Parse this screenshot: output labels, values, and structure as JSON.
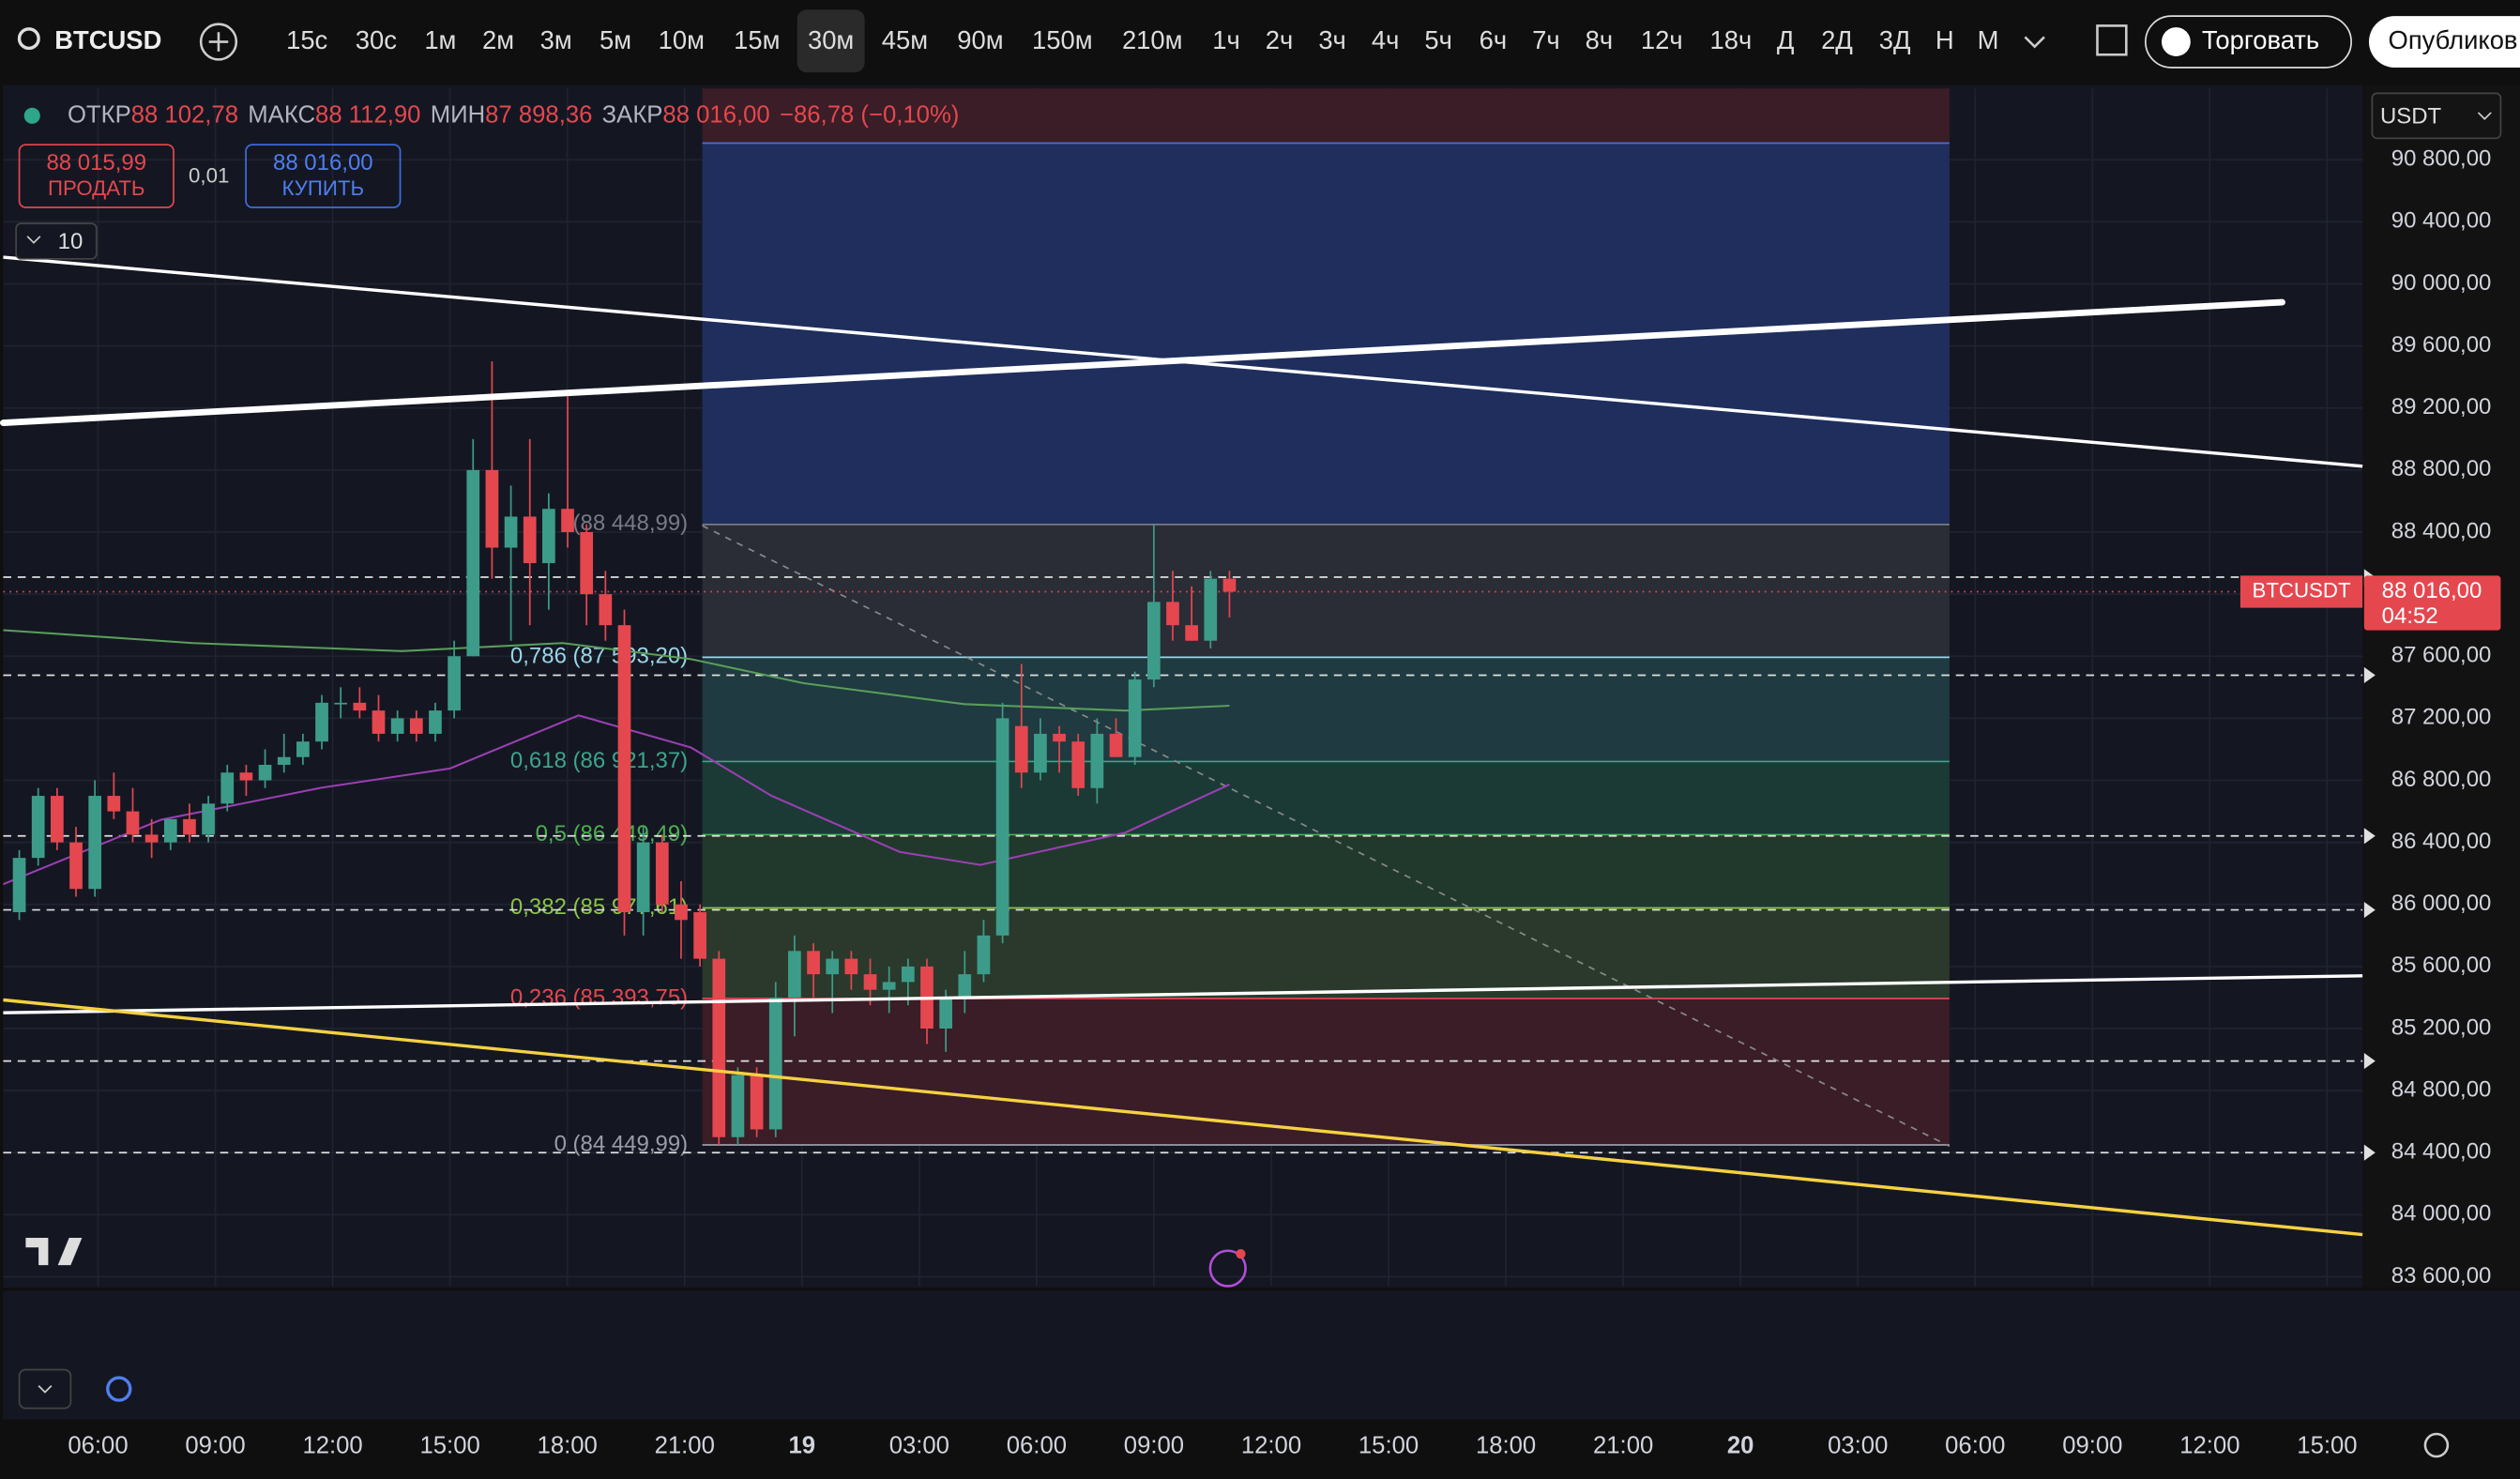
{
  "toolbar": {
    "symbol": "BTCUSD",
    "intervals": [
      "15с",
      "30с",
      "1м",
      "2м",
      "3м",
      "5м",
      "10м",
      "15м",
      "30м",
      "45м",
      "90м",
      "150м",
      "210м",
      "1ч",
      "2ч",
      "3ч",
      "4ч",
      "5ч",
      "6ч",
      "7ч",
      "8ч",
      "12ч",
      "18ч",
      "Д",
      "2Д",
      "3Д",
      "Н",
      "М"
    ],
    "active_interval": "30м",
    "trade": "Торговать",
    "publish": "Опубликов"
  },
  "legend": {
    "open_label": "ОТКР",
    "open": "88 102,78",
    "high_label": "МАКС",
    "high": "88 112,90",
    "low_label": "МИН",
    "low": "87 898,36",
    "close_label": "ЗАКР",
    "close": "88 016,00",
    "change": "−86,78 (−0,10%)"
  },
  "order": {
    "sell_price": "88 015,99",
    "sell": "ПРОДАТЬ",
    "spread": "0,01",
    "buy_price": "88 016,00",
    "buy": "КУПИТЬ"
  },
  "indicator_count": "10",
  "currency": "USDT",
  "price_tag": {
    "symbol": "BTCUSDT",
    "price": "88 016,00",
    "countdown": "04:52"
  },
  "chart_data": {
    "type": "candlestick",
    "up_color": "#3d9c89",
    "down_color": "#e5474f",
    "open": [
      85950,
      86300,
      86700,
      86400,
      86100,
      86700,
      86600,
      86450,
      86400,
      86550,
      86450,
      86650,
      86850,
      86800,
      86900,
      86950,
      87050,
      87300,
      87300,
      87250,
      87100,
      87200,
      87100,
      87250,
      87600,
      88800,
      88300,
      88500,
      88200,
      88550,
      88400,
      88000,
      87800,
      85950,
      86400,
      86000,
      85950,
      85650,
      84500,
      84900,
      84550,
      85400,
      85700,
      85550,
      85650,
      85550,
      85450,
      85500,
      85600,
      85200,
      85400,
      85550,
      85800,
      87150,
      86850,
      87100,
      87050,
      86750,
      87100,
      86950,
      87450,
      87950,
      87800,
      87700,
      88100
    ],
    "high": [
      86350,
      86750,
      86750,
      86500,
      86800,
      86850,
      86750,
      86550,
      86550,
      86650,
      86700,
      86900,
      86900,
      87000,
      87100,
      87100,
      87350,
      87400,
      87400,
      87350,
      87250,
      87250,
      87300,
      87700,
      89000,
      89500,
      88700,
      89000,
      88650,
      89300,
      88450,
      88150,
      87900,
      86500,
      86450,
      86150,
      86000,
      85700,
      84950,
      84950,
      85500,
      85800,
      85750,
      85700,
      85700,
      85650,
      85600,
      85650,
      85650,
      85450,
      85700,
      85900,
      87300,
      87550,
      87200,
      87150,
      87100,
      87200,
      87200,
      87500,
      88450,
      88150,
      88050,
      88150,
      88150
    ],
    "low": [
      85900,
      86250,
      86350,
      86050,
      86050,
      86550,
      86400,
      86300,
      86350,
      86400,
      86400,
      86600,
      86700,
      86750,
      86850,
      86900,
      87000,
      87200,
      87200,
      87050,
      87050,
      87050,
      87050,
      87200,
      87600,
      88100,
      87700,
      87800,
      87900,
      88300,
      87800,
      87700,
      85800,
      85800,
      85950,
      85650,
      85600,
      84450,
      84450,
      84500,
      84500,
      85150,
      85400,
      85300,
      85450,
      85350,
      85300,
      85350,
      85100,
      85050,
      85300,
      85500,
      85750,
      86750,
      86800,
      86850,
      86700,
      86650,
      86950,
      86900,
      87400,
      87700,
      87700,
      87650,
      87850
    ],
    "close": [
      86300,
      86700,
      86400,
      86100,
      86700,
      86600,
      86450,
      86400,
      86550,
      86450,
      86650,
      86850,
      86800,
      86900,
      86950,
      87050,
      87300,
      87300,
      87250,
      87100,
      87200,
      87100,
      87250,
      87600,
      88800,
      88300,
      88500,
      88200,
      88550,
      88400,
      88000,
      87800,
      85950,
      86400,
      86000,
      85900,
      85650,
      84500,
      84900,
      84550,
      85400,
      85700,
      85550,
      85650,
      85550,
      85450,
      85500,
      85600,
      85200,
      85400,
      85550,
      85800,
      87200,
      86850,
      87100,
      87050,
      86750,
      87100,
      86950,
      87450,
      87950,
      87800,
      87700,
      88100,
      88016
    ],
    "ylim": [
      83540,
      91260
    ],
    "yticks": [
      {
        "value": 83600,
        "label": "83 600,00"
      },
      {
        "value": 84000,
        "label": "84 000,00"
      },
      {
        "value": 84400,
        "label": "84 400,00"
      },
      {
        "value": 84800,
        "label": "84 800,00"
      },
      {
        "value": 85200,
        "label": "85 200,00"
      },
      {
        "value": 85600,
        "label": "85 600,00"
      },
      {
        "value": 86000,
        "label": "86 000,00"
      },
      {
        "value": 86400,
        "label": "86 400,00"
      },
      {
        "value": 86800,
        "label": "86 800,00"
      },
      {
        "value": 87200,
        "label": "87 200,00"
      },
      {
        "value": 87600,
        "label": "87 600,00"
      },
      {
        "value": 88000,
        "label": "88 000,00"
      },
      {
        "value": 88400,
        "label": "88 400,00"
      },
      {
        "value": 88800,
        "label": "88 800,00"
      },
      {
        "value": 89200,
        "label": "89 200,00"
      },
      {
        "value": 89600,
        "label": "89 600,00"
      },
      {
        "value": 90000,
        "label": "90 000,00"
      },
      {
        "value": 90400,
        "label": "90 400,00"
      },
      {
        "value": 90800,
        "label": "90 800,00"
      }
    ],
    "time_labels": [
      "06:00",
      "09:00",
      "12:00",
      "15:00",
      "18:00",
      "21:00",
      "19",
      "03:00",
      "06:00",
      "09:00",
      "12:00",
      "15:00",
      "18:00",
      "21:00",
      "20",
      "03:00",
      "06:00",
      "09:00",
      "12:00",
      "15:00"
    ],
    "fib": [
      {
        "value": 88448.99,
        "label": "(88 448,99)"
      },
      {
        "value": 87593.2,
        "label": "0,786 (87 593,20)"
      },
      {
        "value": 86921.37,
        "label": "0,618 (86 921,37)"
      },
      {
        "value": 86449.49,
        "label": "0,5 (86 449,49)"
      },
      {
        "value": 85977.61,
        "label": "0,382 (85 977,61)"
      },
      {
        "value": 85393.75,
        "label": "0,236 (85 393,75)"
      },
      {
        "value": 84449.99,
        "label": "0 (84 449,99)"
      }
    ]
  }
}
